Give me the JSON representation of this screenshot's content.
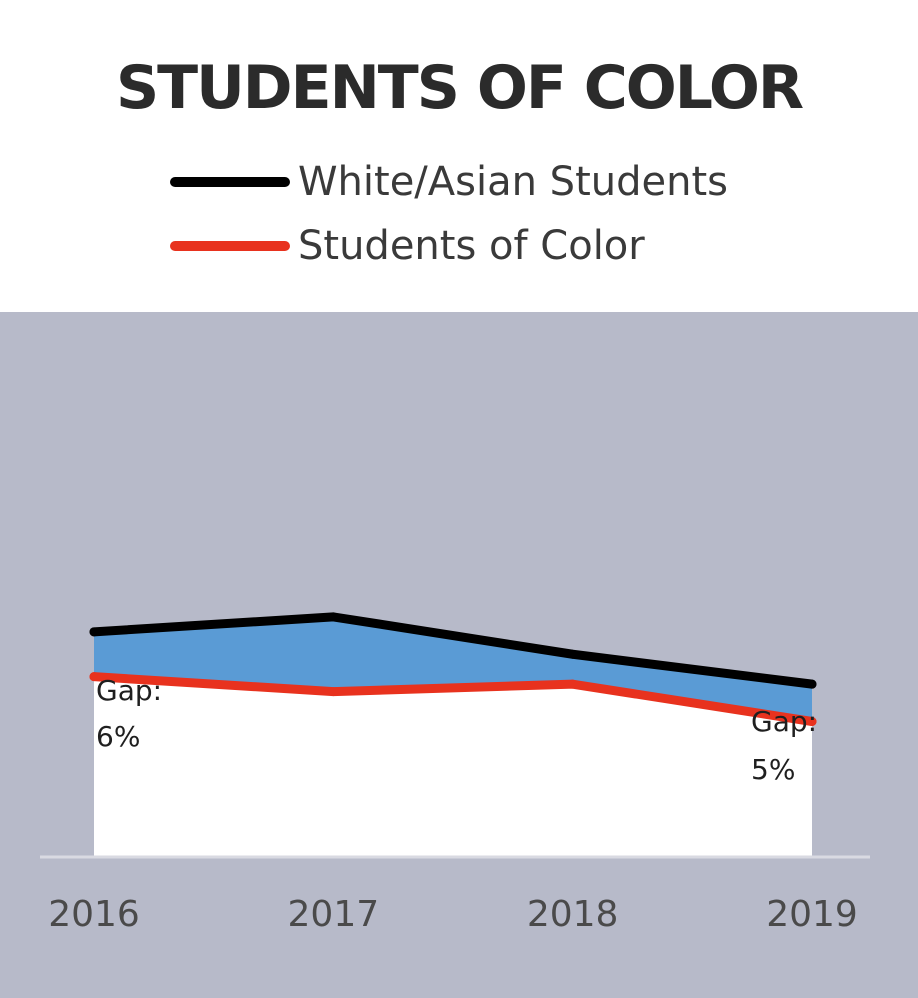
{
  "title": "STUDENTS OF COLOR",
  "colors": {
    "background": "#b7bac9",
    "white_asian_line": "#000000",
    "students_of_color_line": "#e8321e",
    "gap_fill": "#5a9bd5",
    "under_fill": "#ffffff",
    "baseline": "#d9dae2",
    "tick_text": "#4a4a4a"
  },
  "legend": [
    {
      "label": "White/Asian Students",
      "color": "#000000"
    },
    {
      "label": "Students of Color",
      "color": "#e8321e"
    }
  ],
  "annotations": {
    "gap_2016": [
      "Gap:",
      "6%"
    ],
    "gap_2019": [
      "Gap:",
      "5%"
    ]
  },
  "chart_data": {
    "type": "area",
    "title": "STUDENTS OF COLOR",
    "categories": [
      "2016",
      "2017",
      "2018",
      "2019"
    ],
    "series": [
      {
        "name": "White/Asian Students",
        "values": [
          88,
          90,
          85,
          81
        ]
      },
      {
        "name": "Students of Color",
        "values": [
          82,
          80,
          81,
          76
        ]
      }
    ],
    "xlabel": "",
    "ylabel": "",
    "ylim": [
      58,
      130
    ],
    "grid": false,
    "legend": "top"
  }
}
